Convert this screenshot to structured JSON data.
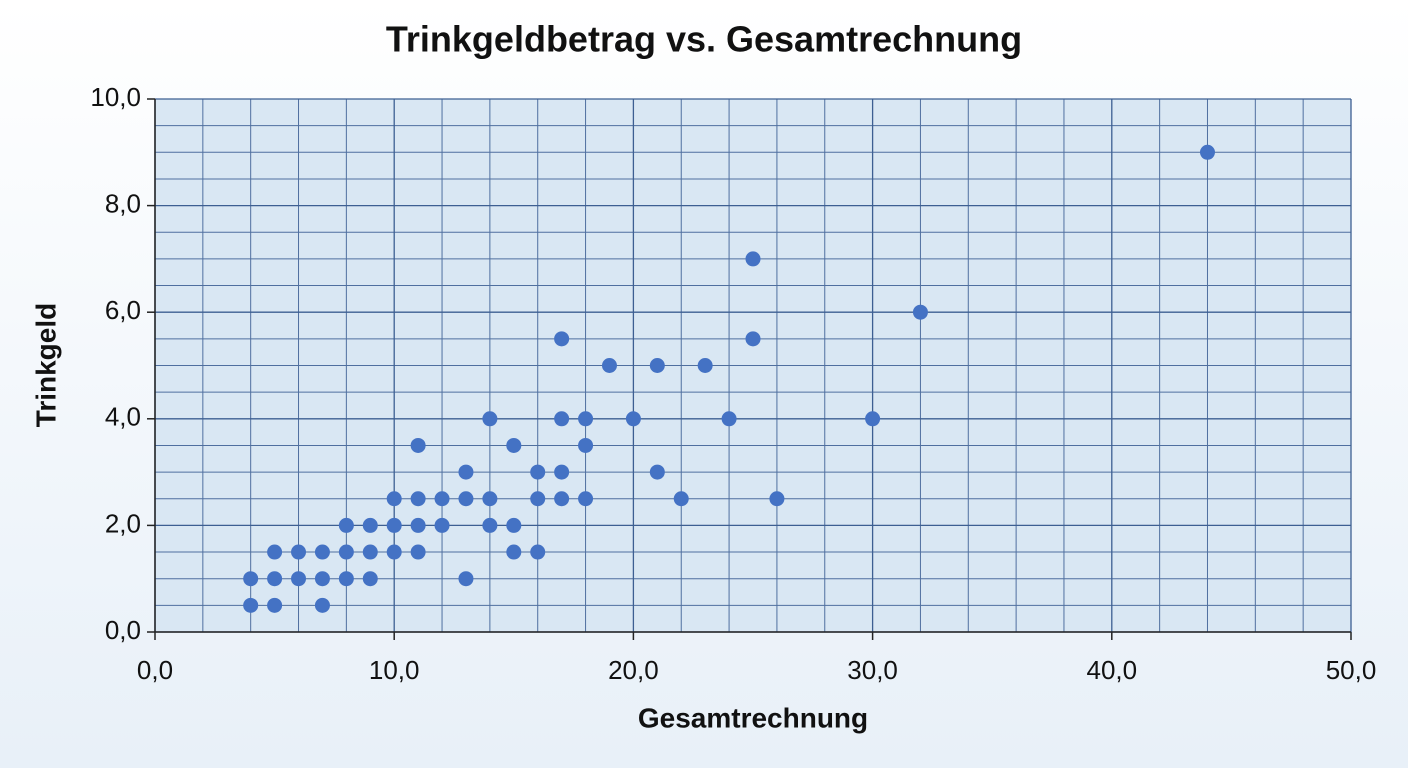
{
  "chart_data": {
    "type": "scatter",
    "title": "Trinkgeldbetrag vs. Gesamtrechnung",
    "xlabel": "Gesamtrechnung",
    "ylabel": "Trinkgeld",
    "x": [
      4,
      4,
      5,
      5,
      5,
      6,
      6,
      7,
      7,
      7,
      8,
      8,
      8,
      9,
      9,
      9,
      10,
      10,
      10,
      11,
      11,
      11,
      11,
      12,
      12,
      13,
      13,
      13,
      14,
      14,
      14,
      15,
      15,
      15,
      16,
      16,
      16,
      17,
      17,
      17,
      17,
      18,
      18,
      18,
      19,
      20,
      21,
      21,
      22,
      23,
      24,
      25,
      25,
      26,
      30,
      32,
      44
    ],
    "values": [
      1,
      0.5,
      1.5,
      1,
      0.5,
      1.5,
      1,
      1.5,
      1,
      0.5,
      2,
      1.5,
      1,
      2,
      1.5,
      1,
      2.5,
      2,
      1.5,
      3.5,
      2.5,
      2,
      1.5,
      2.5,
      2,
      3,
      2.5,
      1,
      4,
      2.5,
      2,
      3.5,
      2,
      1.5,
      3,
      2.5,
      1.5,
      5.5,
      4,
      3,
      2.5,
      4,
      3.5,
      2.5,
      5,
      4,
      5,
      3,
      2.5,
      5,
      4,
      7,
      5.5,
      2.5,
      4,
      6,
      9
    ],
    "color": "#4472c4",
    "xlim": [
      0,
      50
    ],
    "ylim": [
      0,
      10
    ],
    "xticks": [
      {
        "value": 0,
        "label": "0,0"
      },
      {
        "value": 10,
        "label": "10,0"
      },
      {
        "value": 20,
        "label": "20,0"
      },
      {
        "value": 30,
        "label": "30,0"
      },
      {
        "value": 40,
        "label": "40,0"
      },
      {
        "value": 50,
        "label": "50,0"
      }
    ],
    "yticks": [
      {
        "value": 0,
        "label": "0,0"
      },
      {
        "value": 2,
        "label": "2,0"
      },
      {
        "value": 4,
        "label": "4,0"
      },
      {
        "value": 6,
        "label": "6,0"
      },
      {
        "value": 8,
        "label": "8,0"
      },
      {
        "value": 10,
        "label": "10,0"
      }
    ],
    "grid": true
  }
}
